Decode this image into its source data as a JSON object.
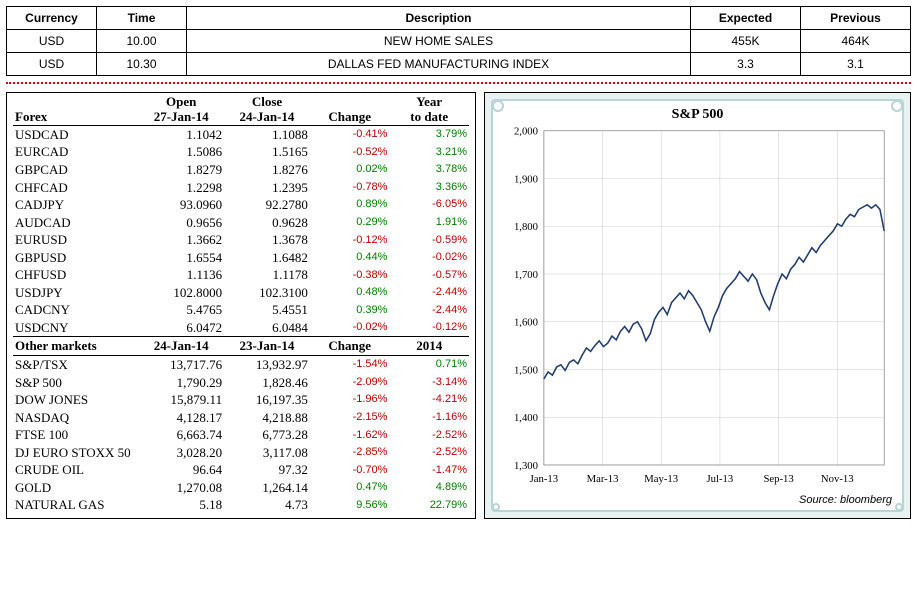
{
  "events": {
    "headers": {
      "currency": "Currency",
      "time": "Time",
      "description": "Description",
      "expected": "Expected",
      "previous": "Previous"
    },
    "rows": [
      {
        "currency": "USD",
        "time": "10.00",
        "description": "NEW HOME SALES",
        "expected": "455K",
        "previous": "464K"
      },
      {
        "currency": "USD",
        "time": "10.30",
        "description": "DALLAS FED MANUFACTURING INDEX",
        "expected": "3.3",
        "previous": "3.1"
      }
    ]
  },
  "forex": {
    "header": {
      "label": "Forex",
      "open_top": "Open",
      "open_date": "27-Jan-14",
      "close_top": "Close",
      "close_date": "24-Jan-14",
      "change": "Change",
      "ytd_top": "Year",
      "ytd_bot": "to date"
    },
    "rows": [
      {
        "name": "USDCAD",
        "open": "1.1042",
        "close": "1.1088",
        "change": "-0.41%",
        "ytd": "3.79%",
        "change_sign": -1,
        "ytd_sign": 1
      },
      {
        "name": "EURCAD",
        "open": "1.5086",
        "close": "1.5165",
        "change": "-0.52%",
        "ytd": "3.21%",
        "change_sign": -1,
        "ytd_sign": 1
      },
      {
        "name": "GBPCAD",
        "open": "1.8279",
        "close": "1.8276",
        "change": "0.02%",
        "ytd": "3.78%",
        "change_sign": 1,
        "ytd_sign": 1
      },
      {
        "name": "CHFCAD",
        "open": "1.2298",
        "close": "1.2395",
        "change": "-0.78%",
        "ytd": "3.36%",
        "change_sign": -1,
        "ytd_sign": 1
      },
      {
        "name": "CADJPY",
        "open": "93.0960",
        "close": "92.2780",
        "change": "0.89%",
        "ytd": "-6.05%",
        "change_sign": 1,
        "ytd_sign": -1
      },
      {
        "name": "AUDCAD",
        "open": "0.9656",
        "close": "0.9628",
        "change": "0.29%",
        "ytd": "1.91%",
        "change_sign": 1,
        "ytd_sign": 1
      },
      {
        "name": "EURUSD",
        "open": "1.3662",
        "close": "1.3678",
        "change": "-0.12%",
        "ytd": "-0.59%",
        "change_sign": -1,
        "ytd_sign": -1
      },
      {
        "name": "GBPUSD",
        "open": "1.6554",
        "close": "1.6482",
        "change": "0.44%",
        "ytd": "-0.02%",
        "change_sign": 1,
        "ytd_sign": -1
      },
      {
        "name": "CHFUSD",
        "open": "1.1136",
        "close": "1.1178",
        "change": "-0.38%",
        "ytd": "-0.57%",
        "change_sign": -1,
        "ytd_sign": -1
      },
      {
        "name": "USDJPY",
        "open": "102.8000",
        "close": "102.3100",
        "change": "0.48%",
        "ytd": "-2.44%",
        "change_sign": 1,
        "ytd_sign": -1
      },
      {
        "name": "CADCNY",
        "open": "5.4765",
        "close": "5.4551",
        "change": "0.39%",
        "ytd": "-2.44%",
        "change_sign": 1,
        "ytd_sign": -1
      },
      {
        "name": "USDCNY",
        "open": "6.0472",
        "close": "6.0484",
        "change": "-0.02%",
        "ytd": "-0.12%",
        "change_sign": -1,
        "ytd_sign": -1
      }
    ]
  },
  "other": {
    "header": {
      "label": "Other markets",
      "open_date": "24-Jan-14",
      "close_date": "23-Jan-14",
      "change": "Change",
      "ytd": "2014"
    },
    "rows": [
      {
        "name": "S&P/TSX",
        "open": "13,717.76",
        "close": "13,932.97",
        "change": "-1.54%",
        "ytd": "0.71%",
        "change_sign": -1,
        "ytd_sign": 1
      },
      {
        "name": "S&P 500",
        "open": "1,790.29",
        "close": "1,828.46",
        "change": "-2.09%",
        "ytd": "-3.14%",
        "change_sign": -1,
        "ytd_sign": -1
      },
      {
        "name": "DOW JONES",
        "open": "15,879.11",
        "close": "16,197.35",
        "change": "-1.96%",
        "ytd": "-4.21%",
        "change_sign": -1,
        "ytd_sign": -1
      },
      {
        "name": "NASDAQ",
        "open": "4,128.17",
        "close": "4,218.88",
        "change": "-2.15%",
        "ytd": "-1.16%",
        "change_sign": -1,
        "ytd_sign": -1
      },
      {
        "name": "FTSE 100",
        "open": "6,663.74",
        "close": "6,773.28",
        "change": "-1.62%",
        "ytd": "-2.52%",
        "change_sign": -1,
        "ytd_sign": -1
      },
      {
        "name": "DJ EURO STOXX 50",
        "open": "3,028.20",
        "close": "3,117.08",
        "change": "-2.85%",
        "ytd": "-2.52%",
        "change_sign": -1,
        "ytd_sign": -1
      },
      {
        "name": "CRUDE OIL",
        "open": "96.64",
        "close": "97.32",
        "change": "-0.70%",
        "ytd": "-1.47%",
        "change_sign": -1,
        "ytd_sign": -1
      },
      {
        "name": "GOLD",
        "open": "1,270.08",
        "close": "1,264.14",
        "change": "0.47%",
        "ytd": "4.89%",
        "change_sign": 1,
        "ytd_sign": 1
      },
      {
        "name": "NATURAL GAS",
        "open": "5.18",
        "close": "4.73",
        "change": "9.56%",
        "ytd": "22.79%",
        "change_sign": 1,
        "ytd_sign": 1
      }
    ]
  },
  "chart": {
    "type": "line",
    "title": "S&P 500",
    "source": "Source: bloomberg",
    "x_labels": [
      "Jan-13",
      "Mar-13",
      "May-13",
      "Jul-13",
      "Sep-13",
      "Nov-13"
    ],
    "ylim": [
      1300,
      2000
    ],
    "ytick_step": 100,
    "line_color": "#1f3b70",
    "line_width": 1.6,
    "grid_color": "#d0d0d0",
    "border_color": "#b8d4d4",
    "background_color": "#ffffff",
    "title_fontsize": 14,
    "label_fontsize": 11,
    "series": [
      1480,
      1495,
      1488,
      1505,
      1510,
      1498,
      1515,
      1520,
      1512,
      1530,
      1545,
      1538,
      1550,
      1560,
      1548,
      1555,
      1570,
      1562,
      1580,
      1590,
      1578,
      1595,
      1600,
      1585,
      1560,
      1575,
      1605,
      1620,
      1630,
      1615,
      1640,
      1650,
      1660,
      1648,
      1665,
      1655,
      1640,
      1625,
      1600,
      1580,
      1610,
      1630,
      1655,
      1670,
      1680,
      1690,
      1705,
      1695,
      1685,
      1700,
      1688,
      1660,
      1640,
      1625,
      1655,
      1680,
      1700,
      1690,
      1710,
      1720,
      1735,
      1725,
      1740,
      1755,
      1745,
      1760,
      1770,
      1780,
      1790,
      1805,
      1800,
      1815,
      1825,
      1820,
      1835,
      1840,
      1845,
      1838,
      1845,
      1835,
      1790
    ]
  }
}
